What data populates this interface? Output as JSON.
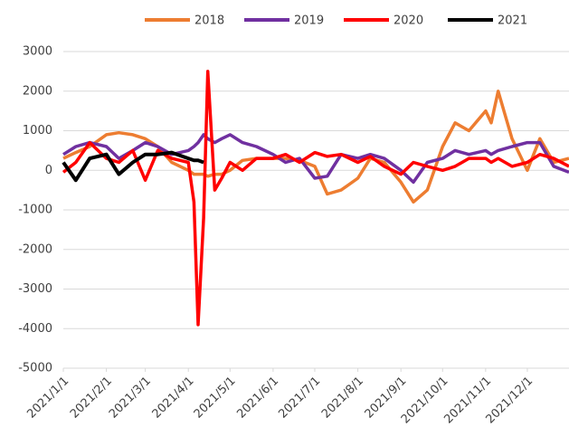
{
  "chart_data": {
    "type": "line",
    "x": [
      "2021/1/1",
      "2021/1/10",
      "2021/1/20",
      "2021/2/1",
      "2021/2/10",
      "2021/2/20",
      "2021/3/1",
      "2021/3/10",
      "2021/3/20",
      "2021/4/1",
      "2021/4/5",
      "2021/4/8",
      "2021/4/12",
      "2021/4/15",
      "2021/4/20",
      "2021/4/25",
      "2021/5/1",
      "2021/5/10",
      "2021/5/20",
      "2021/6/1",
      "2021/6/10",
      "2021/6/20",
      "2021/7/1",
      "2021/7/10",
      "2021/7/20",
      "2021/8/1",
      "2021/8/10",
      "2021/8/20",
      "2021/9/1",
      "2021/9/10",
      "2021/9/20",
      "2021/10/1",
      "2021/10/10",
      "2021/10/20",
      "2021/11/1",
      "2021/11/5",
      "2021/11/10",
      "2021/11/20",
      "2021/12/1",
      "2021/12/10",
      "2021/12/20",
      "2021/12/31"
    ],
    "series": [
      {
        "name": "2018",
        "color": "#ed7d31",
        "values": [
          300,
          450,
          600,
          900,
          950,
          900,
          800,
          600,
          200,
          0,
          -100,
          -100,
          -100,
          -150,
          -100,
          -100,
          0,
          250,
          300,
          300,
          300,
          250,
          100,
          -600,
          -500,
          -200,
          300,
          200,
          -300,
          -800,
          -500,
          600,
          1200,
          1000,
          1500,
          1200,
          2000,
          800,
          0,
          800,
          200,
          300
        ]
      },
      {
        "name": "2019",
        "color": "#7030a0",
        "values": [
          400,
          600,
          700,
          600,
          300,
          500,
          700,
          600,
          400,
          500,
          600,
          700,
          900,
          800,
          700,
          800,
          900,
          700,
          600,
          400,
          200,
          300,
          -200,
          -150,
          400,
          300,
          400,
          300,
          0,
          -300,
          200,
          300,
          500,
          400,
          500,
          400,
          500,
          600,
          700,
          700,
          100,
          -50
        ]
      },
      {
        "name": "2020",
        "color": "#ff0000",
        "values": [
          -50,
          200,
          700,
          300,
          200,
          500,
          -250,
          500,
          300,
          200,
          -800,
          -3900,
          -1200,
          2500,
          -500,
          -200,
          200,
          0,
          300,
          300,
          400,
          200,
          450,
          350,
          400,
          200,
          350,
          100,
          -100,
          200,
          100,
          0,
          100,
          300,
          300,
          200,
          300,
          100,
          200,
          400,
          300,
          100
        ]
      },
      {
        "name": "2021",
        "color": "#000000",
        "values": [
          200,
          -250,
          300,
          400,
          -100,
          200,
          400,
          400,
          450,
          300,
          250,
          250,
          200,
          null,
          null,
          null,
          null,
          null,
          null,
          null,
          null,
          null,
          null,
          null,
          null,
          null,
          null,
          null,
          null,
          null,
          null,
          null,
          null,
          null,
          null,
          null,
          null,
          null,
          null,
          null,
          null,
          null
        ]
      }
    ],
    "xlim": [
      "2021/1/1",
      "2021/12/31"
    ],
    "xticks": [
      "2021/1/1",
      "2021/2/1",
      "2021/3/1",
      "2021/4/1",
      "2021/5/1",
      "2021/6/1",
      "2021/7/1",
      "2021/8/1",
      "2021/9/1",
      "2021/10/1",
      "2021/11/1",
      "2021/12/1"
    ],
    "ylim": [
      -5000,
      3000
    ],
    "yticks": [
      -5000,
      -4000,
      -3000,
      -2000,
      -1000,
      0,
      1000,
      2000,
      3000
    ],
    "grid": true,
    "legend": "top"
  }
}
